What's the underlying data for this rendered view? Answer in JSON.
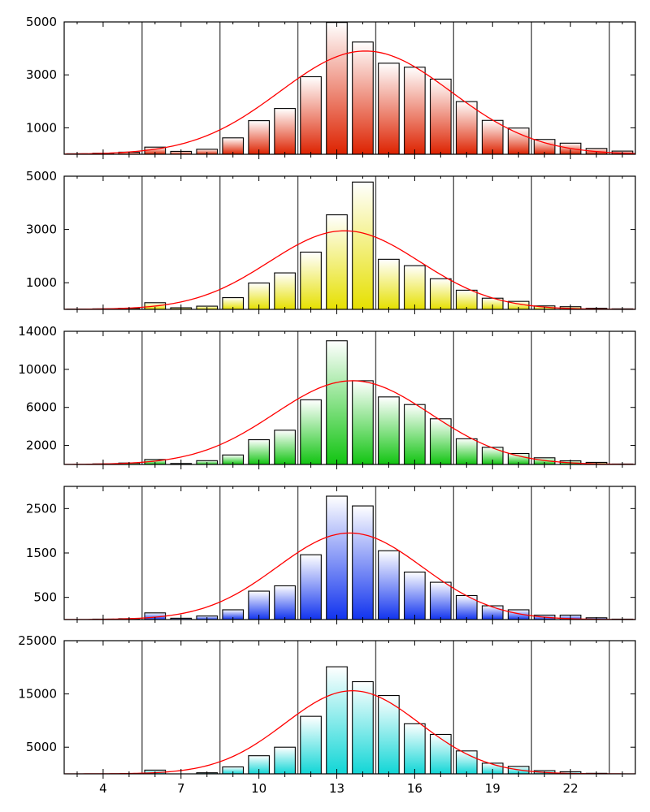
{
  "colors": {
    "panel_gradients": [
      [
        "#ffffff",
        "#dd2200"
      ],
      [
        "#ffffff",
        "#e6e000"
      ],
      [
        "#ffffff",
        "#11c411"
      ],
      [
        "#ffffff",
        "#1133ee"
      ],
      [
        "#ffffff",
        "#11d6d6"
      ]
    ],
    "fit_curve": "#ff0000",
    "grid": "#555555",
    "bar_edge": "#000000"
  },
  "chart_data": [
    {
      "type": "bar",
      "x": [
        2,
        3,
        4,
        5,
        6,
        7,
        8,
        9,
        10,
        11,
        12,
        13,
        14,
        15,
        16,
        17,
        18,
        19,
        20,
        21,
        22,
        23,
        24
      ],
      "values": [
        10,
        20,
        40,
        80,
        270,
        110,
        190,
        620,
        1270,
        1730,
        2930,
        4980,
        4240,
        3440,
        3290,
        2840,
        1990,
        1280,
        990,
        560,
        420,
        220,
        120
      ],
      "fit": {
        "mean": 14.1,
        "sd": 3.3,
        "peak": 3900
      },
      "xlim": [
        2.5,
        24.5
      ],
      "ylim": [
        0,
        5000
      ],
      "yticks": [
        1000,
        3000,
        5000
      ],
      "xticks": [
        4,
        7,
        10,
        13,
        16,
        19,
        22
      ],
      "vgrid": [
        5.5,
        8.5,
        11.5,
        14.5,
        17.5,
        20.5,
        23.5
      ],
      "show_xtick_labels": false
    },
    {
      "type": "bar",
      "x": [
        2,
        3,
        4,
        5,
        6,
        7,
        8,
        9,
        10,
        11,
        12,
        13,
        14,
        15,
        16,
        17,
        18,
        19,
        20,
        21,
        22,
        23,
        24
      ],
      "values": [
        0,
        10,
        20,
        40,
        250,
        60,
        120,
        440,
        990,
        1370,
        2150,
        3550,
        4780,
        1880,
        1640,
        1150,
        720,
        420,
        300,
        130,
        100,
        40,
        20
      ],
      "fit": {
        "mean": 13.3,
        "sd": 2.9,
        "peak": 2950
      },
      "xlim": [
        2.5,
        24.5
      ],
      "ylim": [
        0,
        5000
      ],
      "yticks": [
        1000,
        3000,
        5000
      ],
      "xticks": [
        4,
        7,
        10,
        13,
        16,
        19,
        22
      ],
      "vgrid": [
        5.5,
        8.5,
        11.5,
        14.5,
        17.5,
        20.5,
        23.5
      ],
      "show_xtick_labels": false
    },
    {
      "type": "bar",
      "x": [
        2,
        3,
        4,
        5,
        6,
        7,
        8,
        9,
        10,
        11,
        12,
        13,
        14,
        15,
        16,
        17,
        18,
        19,
        20,
        21,
        22,
        23,
        24
      ],
      "values": [
        0,
        0,
        60,
        150,
        520,
        100,
        400,
        1000,
        2600,
        3600,
        6800,
        13000,
        8800,
        7100,
        6300,
        4800,
        2700,
        1800,
        1150,
        700,
        380,
        220,
        50
      ],
      "fit": {
        "mean": 13.6,
        "sd": 3.0,
        "peak": 8800
      },
      "xlim": [
        2.5,
        24.5
      ],
      "ylim": [
        0,
        14000
      ],
      "yticks": [
        2000,
        6000,
        10000,
        14000
      ],
      "xticks": [
        4,
        7,
        10,
        13,
        16,
        19,
        22
      ],
      "vgrid": [
        5.5,
        8.5,
        11.5,
        14.5,
        17.5,
        20.5,
        23.5
      ],
      "show_xtick_labels": false
    },
    {
      "type": "bar",
      "x": [
        2,
        3,
        4,
        5,
        6,
        7,
        8,
        9,
        10,
        11,
        12,
        13,
        14,
        15,
        16,
        17,
        18,
        19,
        20,
        21,
        22,
        23,
        24
      ],
      "values": [
        0,
        0,
        10,
        20,
        150,
        30,
        80,
        220,
        640,
        760,
        1460,
        2780,
        2560,
        1550,
        1070,
        840,
        540,
        310,
        220,
        100,
        100,
        40,
        10
      ],
      "fit": {
        "mean": 13.5,
        "sd": 2.8,
        "peak": 1950
      },
      "xlim": [
        2.5,
        24.5
      ],
      "ylim": [
        0,
        3000
      ],
      "yticks": [
        500,
        1500,
        2500
      ],
      "xticks": [
        4,
        7,
        10,
        13,
        16,
        19,
        22
      ],
      "vgrid": [
        5.5,
        8.5,
        11.5,
        14.5,
        17.5,
        20.5,
        23.5
      ],
      "show_xtick_labels": false
    },
    {
      "type": "bar",
      "x": [
        2,
        3,
        4,
        5,
        6,
        7,
        8,
        9,
        10,
        11,
        12,
        13,
        14,
        15,
        16,
        17,
        18,
        19,
        20,
        21,
        22,
        23,
        24
      ],
      "values": [
        0,
        0,
        0,
        0,
        700,
        0,
        200,
        1300,
        3400,
        5000,
        10800,
        20100,
        17300,
        14700,
        9400,
        7400,
        4300,
        2000,
        1400,
        600,
        400,
        100,
        0
      ],
      "fit": {
        "mean": 13.6,
        "sd": 2.6,
        "peak": 15600
      },
      "xlim": [
        2.5,
        24.5
      ],
      "ylim": [
        0,
        25000
      ],
      "yticks": [
        5000,
        15000,
        25000
      ],
      "xticks": [
        4,
        7,
        10,
        13,
        16,
        19,
        22
      ],
      "vgrid": [
        5.5,
        8.5,
        11.5,
        14.5,
        17.5,
        20.5,
        23.5
      ],
      "show_xtick_labels": true
    }
  ]
}
